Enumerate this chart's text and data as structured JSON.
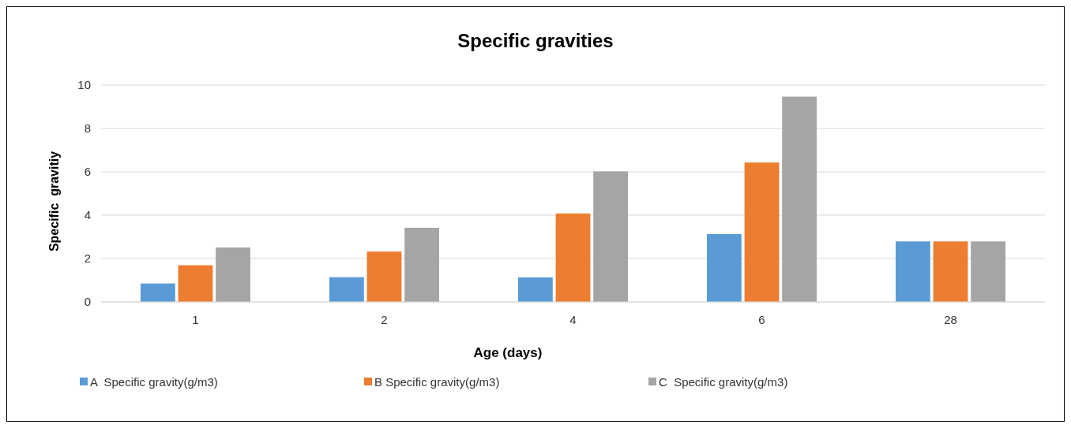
{
  "chart_data": {
    "type": "bar",
    "title": "Specific gravities",
    "xlabel": "Age (days)",
    "ylabel": "Specific  gravitiy",
    "categories": [
      "1",
      "2",
      "4",
      "6",
      "28"
    ],
    "series": [
      {
        "name": "A  Specific gravity(g/m3)",
        "color": "#5b9bd5",
        "values": [
          0.85,
          1.14,
          1.13,
          3.13,
          2.79
        ]
      },
      {
        "name": "B Specific gravity(g/m3)",
        "color": "#ed7d31",
        "values": [
          1.69,
          2.32,
          4.08,
          6.43,
          2.79
        ]
      },
      {
        "name": "C  Specific gravity(g/m3)",
        "color": "#a5a5a5",
        "values": [
          2.51,
          3.42,
          6.02,
          9.47,
          2.79
        ]
      }
    ],
    "ylim": [
      0,
      10
    ],
    "yticks": [
      0,
      2,
      4,
      6,
      8,
      10
    ],
    "grid": "y",
    "legend": "bottom"
  }
}
